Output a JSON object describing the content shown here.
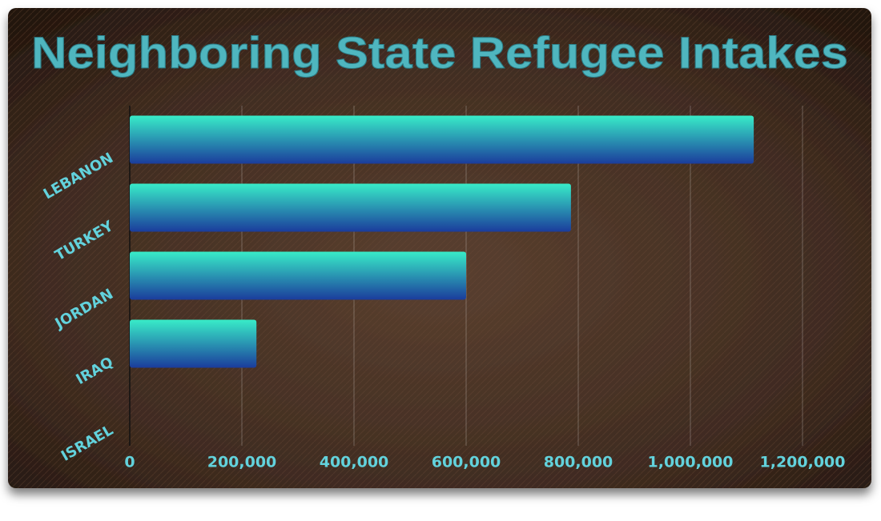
{
  "chart_data": {
    "type": "bar",
    "orientation": "horizontal",
    "title": "Neighboring State Refugee Intakes",
    "categories": [
      "LEBANON",
      "TURKEY",
      "JORDAN",
      "IRAQ",
      "ISRAEL"
    ],
    "values": [
      1113000,
      787000,
      600000,
      226000,
      0
    ],
    "gradient": [
      "#38ecc8",
      "#1b3c9c"
    ],
    "xlim": [
      0,
      1280000
    ],
    "xticks": [
      0,
      {
        "value": 200000,
        "label": "200,000"
      },
      {
        "value": 400000,
        "label": "400,000"
      },
      {
        "value": 600000,
        "label": "600,000"
      },
      {
        "value": 800000,
        "label": "800,000"
      },
      {
        "value": 1000000,
        "label": "1,000,000"
      },
      {
        "value": 1200000,
        "label": "1,200,000"
      }
    ],
    "grid": true
  }
}
